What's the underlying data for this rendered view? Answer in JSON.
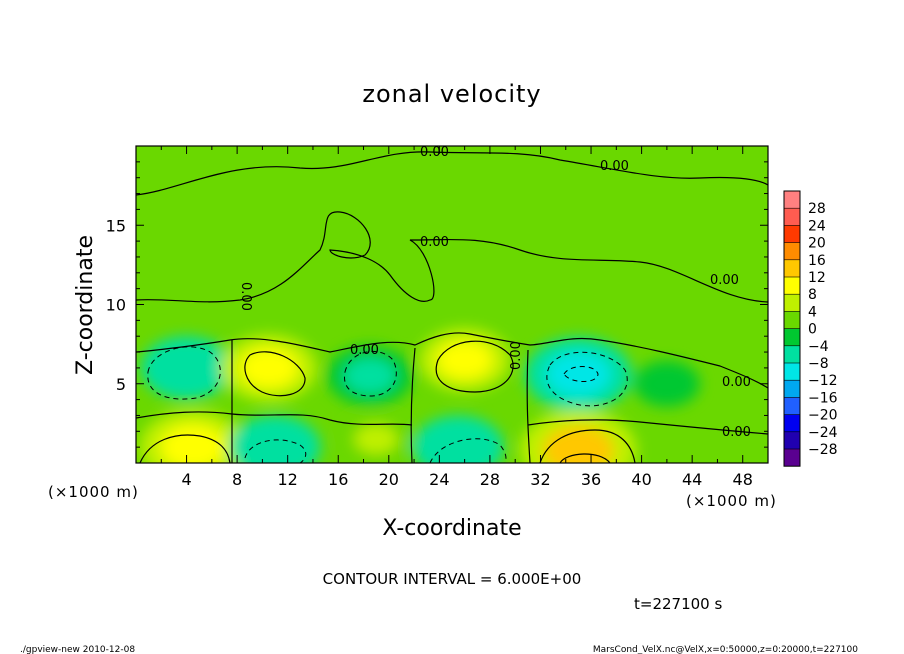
{
  "chart_data": {
    "type": "heatmap",
    "title": "zonal velocity",
    "xlabel": "X-coordinate",
    "ylabel": "Z-coordinate",
    "x_unit": "(×1000 m)",
    "y_unit": "(×1000 m)",
    "xlim": [
      0,
      50
    ],
    "ylim": [
      0,
      20
    ],
    "x_ticks": [
      4,
      8,
      12,
      16,
      20,
      24,
      28,
      32,
      36,
      40,
      44,
      48
    ],
    "y_ticks": [
      5,
      10,
      15
    ],
    "colorbar": {
      "labels": [
        "28",
        "24",
        "20",
        "16",
        "12",
        "8",
        "4",
        "0",
        "−4",
        "−8",
        "−12",
        "−16",
        "−20",
        "−24",
        "−28"
      ],
      "bins": [
        {
          "value": 30,
          "color": "#ff8080"
        },
        {
          "value": 26,
          "color": "#ff5c50"
        },
        {
          "value": 22,
          "color": "#ff3a00"
        },
        {
          "value": 18,
          "color": "#ff8c00"
        },
        {
          "value": 14,
          "color": "#ffc800"
        },
        {
          "value": 10,
          "color": "#ffff00"
        },
        {
          "value": 6,
          "color": "#bff000"
        },
        {
          "value": 2,
          "color": "#6ad800"
        },
        {
          "value": -2,
          "color": "#00c830"
        },
        {
          "value": -6,
          "color": "#00e0a0"
        },
        {
          "value": -10,
          "color": "#00e6e6"
        },
        {
          "value": -14,
          "color": "#00a8f0"
        },
        {
          "value": -18,
          "color": "#2060ff"
        },
        {
          "value": -22,
          "color": "#0000f0"
        },
        {
          "value": -26,
          "color": "#2000b0"
        },
        {
          "value": -30,
          "color": "#5a0090"
        }
      ]
    },
    "contour_labels": [
      "0.00",
      "0.00",
      "0.00",
      "0.00",
      "0.00",
      "0.00",
      "0.00",
      "0.00",
      "0.00"
    ],
    "features": [
      {
        "x": 4,
        "z": 6.0,
        "value": -8
      },
      {
        "x": 10.5,
        "z": 6.0,
        "value": 9
      },
      {
        "x": 18.5,
        "z": 5.5,
        "value": -7
      },
      {
        "x": 26,
        "z": 6.5,
        "value": 8
      },
      {
        "x": 35,
        "z": 5.6,
        "value": -11
      },
      {
        "x": 42,
        "z": 5.0,
        "value": -3
      },
      {
        "x": 4.5,
        "z": 1.0,
        "value": 11
      },
      {
        "x": 11,
        "z": 1.0,
        "value": -8
      },
      {
        "x": 19,
        "z": 1.5,
        "value": 4
      },
      {
        "x": 25.5,
        "z": 1.0,
        "value": -8
      },
      {
        "x": 35,
        "z": 0.8,
        "value": 13
      }
    ]
  },
  "contour_interval": "CONTOUR INTERVAL = 6.000E+00",
  "time_label": "t=227100 s",
  "footer_left": "./gpview-new  2010-12-08",
  "footer_right": "MarsCond_VelX.nc@VelX,x=0:50000,z=0:20000,t=227100"
}
